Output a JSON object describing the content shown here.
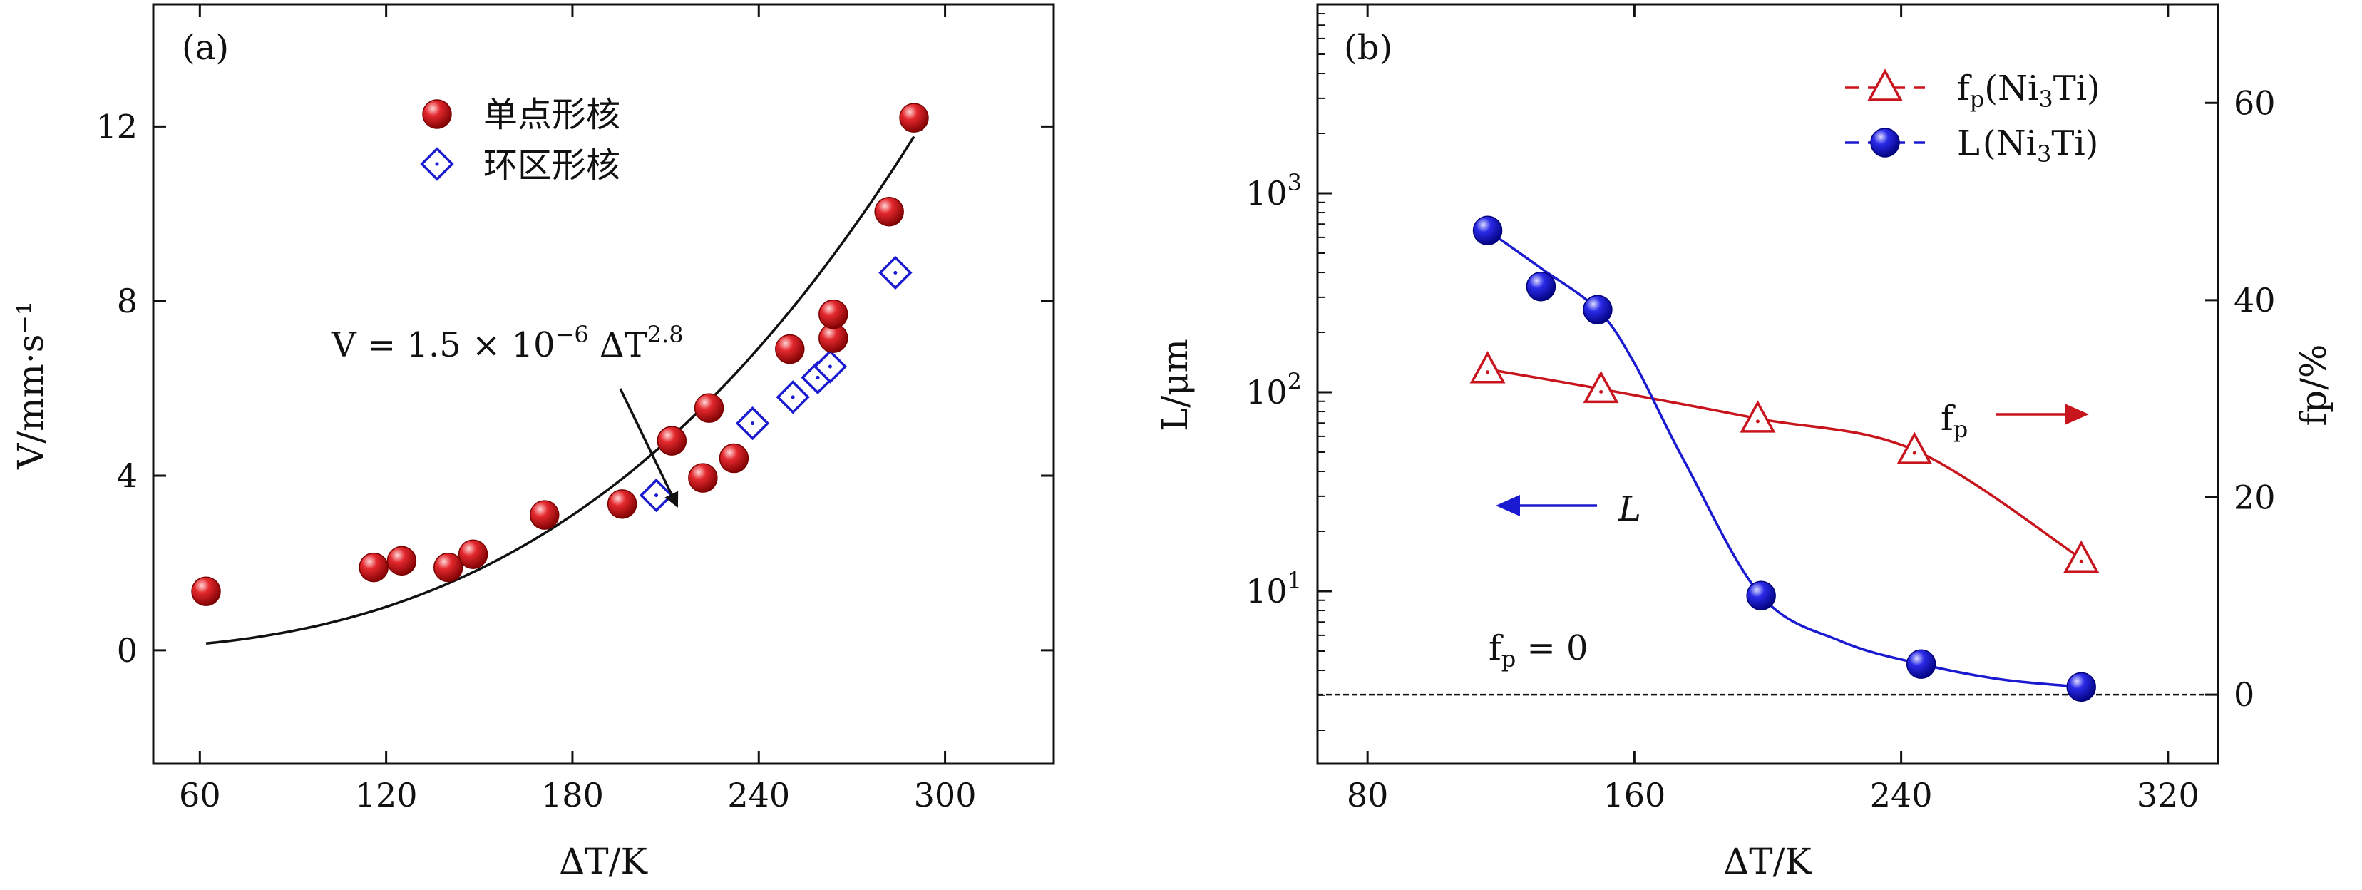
{
  "chart_data": [
    {
      "type": "scatter",
      "panel_label": "(a)",
      "xlabel": "ΔT/K",
      "ylabel": "V/mm·s⁻¹",
      "xlim": [
        45,
        335
      ],
      "ylim": [
        -2.6,
        14.8
      ],
      "x_ticks": [
        60,
        120,
        180,
        240,
        300
      ],
      "y_ticks": [
        0,
        4,
        8,
        12
      ],
      "legend_position": "top-left",
      "series": [
        {
          "name": "单点形核",
          "marker": "sphere",
          "color": "#c8141c",
          "points": [
            [
              62,
              1.35
            ],
            [
              116,
              1.9
            ],
            [
              125,
              2.05
            ],
            [
              140,
              1.9
            ],
            [
              148,
              2.2
            ],
            [
              171,
              3.1
            ],
            [
              196,
              3.35
            ],
            [
              212,
              4.8
            ],
            [
              222,
              3.95
            ],
            [
              224,
              5.55
            ],
            [
              232,
              4.4
            ],
            [
              250,
              6.9
            ],
            [
              264,
              7.15
            ],
            [
              264,
              7.7
            ],
            [
              282,
              10.05
            ],
            [
              290,
              12.2
            ]
          ]
        },
        {
          "name": "环区形核",
          "marker": "diamond-open",
          "color": "#1a1ad0",
          "points": [
            [
              207,
              3.55
            ],
            [
              238,
              5.2
            ],
            [
              251,
              5.8
            ],
            [
              259,
              6.25
            ],
            [
              263,
              6.5
            ],
            [
              284,
              8.65
            ]
          ]
        }
      ],
      "fit": {
        "label": "V = 1.5 × 10⁻⁶ ΔT^2.8",
        "formula_main": "V = 1.5 × 10",
        "formula_exp1": "−6",
        "formula_mid": " ΔT",
        "formula_exp2": "2.8",
        "coefficient": 1.5e-06,
        "exponent": 2.8,
        "x_range": [
          62,
          290
        ]
      }
    },
    {
      "type": "line",
      "panel_label": "(b)",
      "xlabel": "ΔT/K",
      "ylabel_left": "L/μm",
      "ylabel_right": "fp/%",
      "xlim": [
        65,
        335
      ],
      "x_ticks": [
        80,
        160,
        240,
        320
      ],
      "left_axis": {
        "scale": "log",
        "ticks": [
          "10³",
          "10²",
          "10¹"
        ],
        "tick_values": [
          1000,
          100,
          10
        ]
      },
      "right_axis": {
        "ylim": [
          -7,
          70
        ],
        "ticks": [
          0,
          20,
          40,
          60
        ]
      },
      "legend_position": "top-right",
      "series": [
        {
          "name": "fp(Ni3Ti)",
          "legend_text": "fp(Ni₃Ti)",
          "axis": "right",
          "marker": "triangle-open",
          "color": "#c8141c",
          "points": [
            [
              116,
              33
            ],
            [
              150,
              31
            ],
            [
              197,
              28
            ],
            [
              244,
              24.8
            ],
            [
              294,
              13.8
            ]
          ]
        },
        {
          "name": "L(Ni3Ti)",
          "legend_text": "L(Ni₃Ti)",
          "axis": "left",
          "marker": "sphere",
          "color": "#1a1ad0",
          "points": [
            [
              116,
              650
            ],
            [
              132,
              340
            ],
            [
              149,
              260
            ],
            [
              198,
              9.5
            ],
            [
              246,
              4.3
            ],
            [
              294,
              3.3
            ]
          ]
        }
      ],
      "annotations": {
        "fp_arrow": "fp →",
        "l_arrow": "← L",
        "baseline_label": "fp = 0"
      }
    }
  ]
}
